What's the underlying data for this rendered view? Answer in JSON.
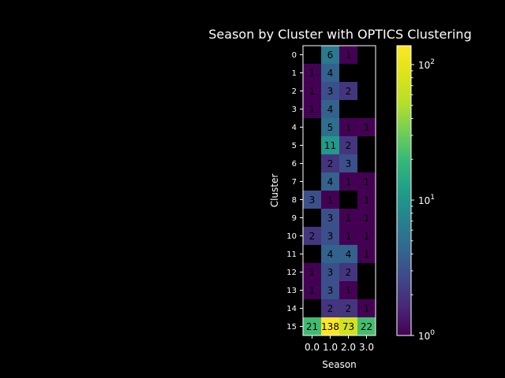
{
  "chart_data": {
    "type": "heatmap",
    "title": "Season by Cluster with OPTICS Clustering",
    "xlabel": "Season",
    "ylabel": "Cluster",
    "x_categories": [
      "0.0",
      "1.0",
      "2.0",
      "3.0"
    ],
    "y_categories": [
      "0",
      "1",
      "2",
      "3",
      "4",
      "5",
      "6",
      "7",
      "8",
      "9",
      "10",
      "11",
      "12",
      "13",
      "14",
      "15"
    ],
    "values": [
      [
        null,
        6,
        1,
        null
      ],
      [
        1,
        4,
        null,
        null
      ],
      [
        1,
        3,
        2,
        null
      ],
      [
        1,
        4,
        null,
        null
      ],
      [
        null,
        5,
        1,
        1
      ],
      [
        null,
        11,
        2,
        null
      ],
      [
        null,
        2,
        3,
        null
      ],
      [
        null,
        4,
        1,
        1
      ],
      [
        3,
        1,
        null,
        1
      ],
      [
        null,
        3,
        1,
        1
      ],
      [
        2,
        3,
        1,
        1
      ],
      [
        null,
        4,
        4,
        1
      ],
      [
        1,
        3,
        2,
        null
      ],
      [
        1,
        3,
        1,
        null
      ],
      [
        null,
        2,
        2,
        1
      ],
      [
        21,
        138,
        73,
        22
      ]
    ],
    "colorbar": {
      "scale": "log",
      "colormap": "viridis",
      "range": [
        1,
        138
      ],
      "ticks": [
        1,
        10,
        100
      ],
      "tick_labels": [
        {
          "base": "10",
          "exp": "0"
        },
        {
          "base": "10",
          "exp": "1"
        },
        {
          "base": "10",
          "exp": "2"
        }
      ]
    },
    "colors": {
      "background": "#000000",
      "text": "#ffffff",
      "cell_text": "#000000"
    }
  }
}
